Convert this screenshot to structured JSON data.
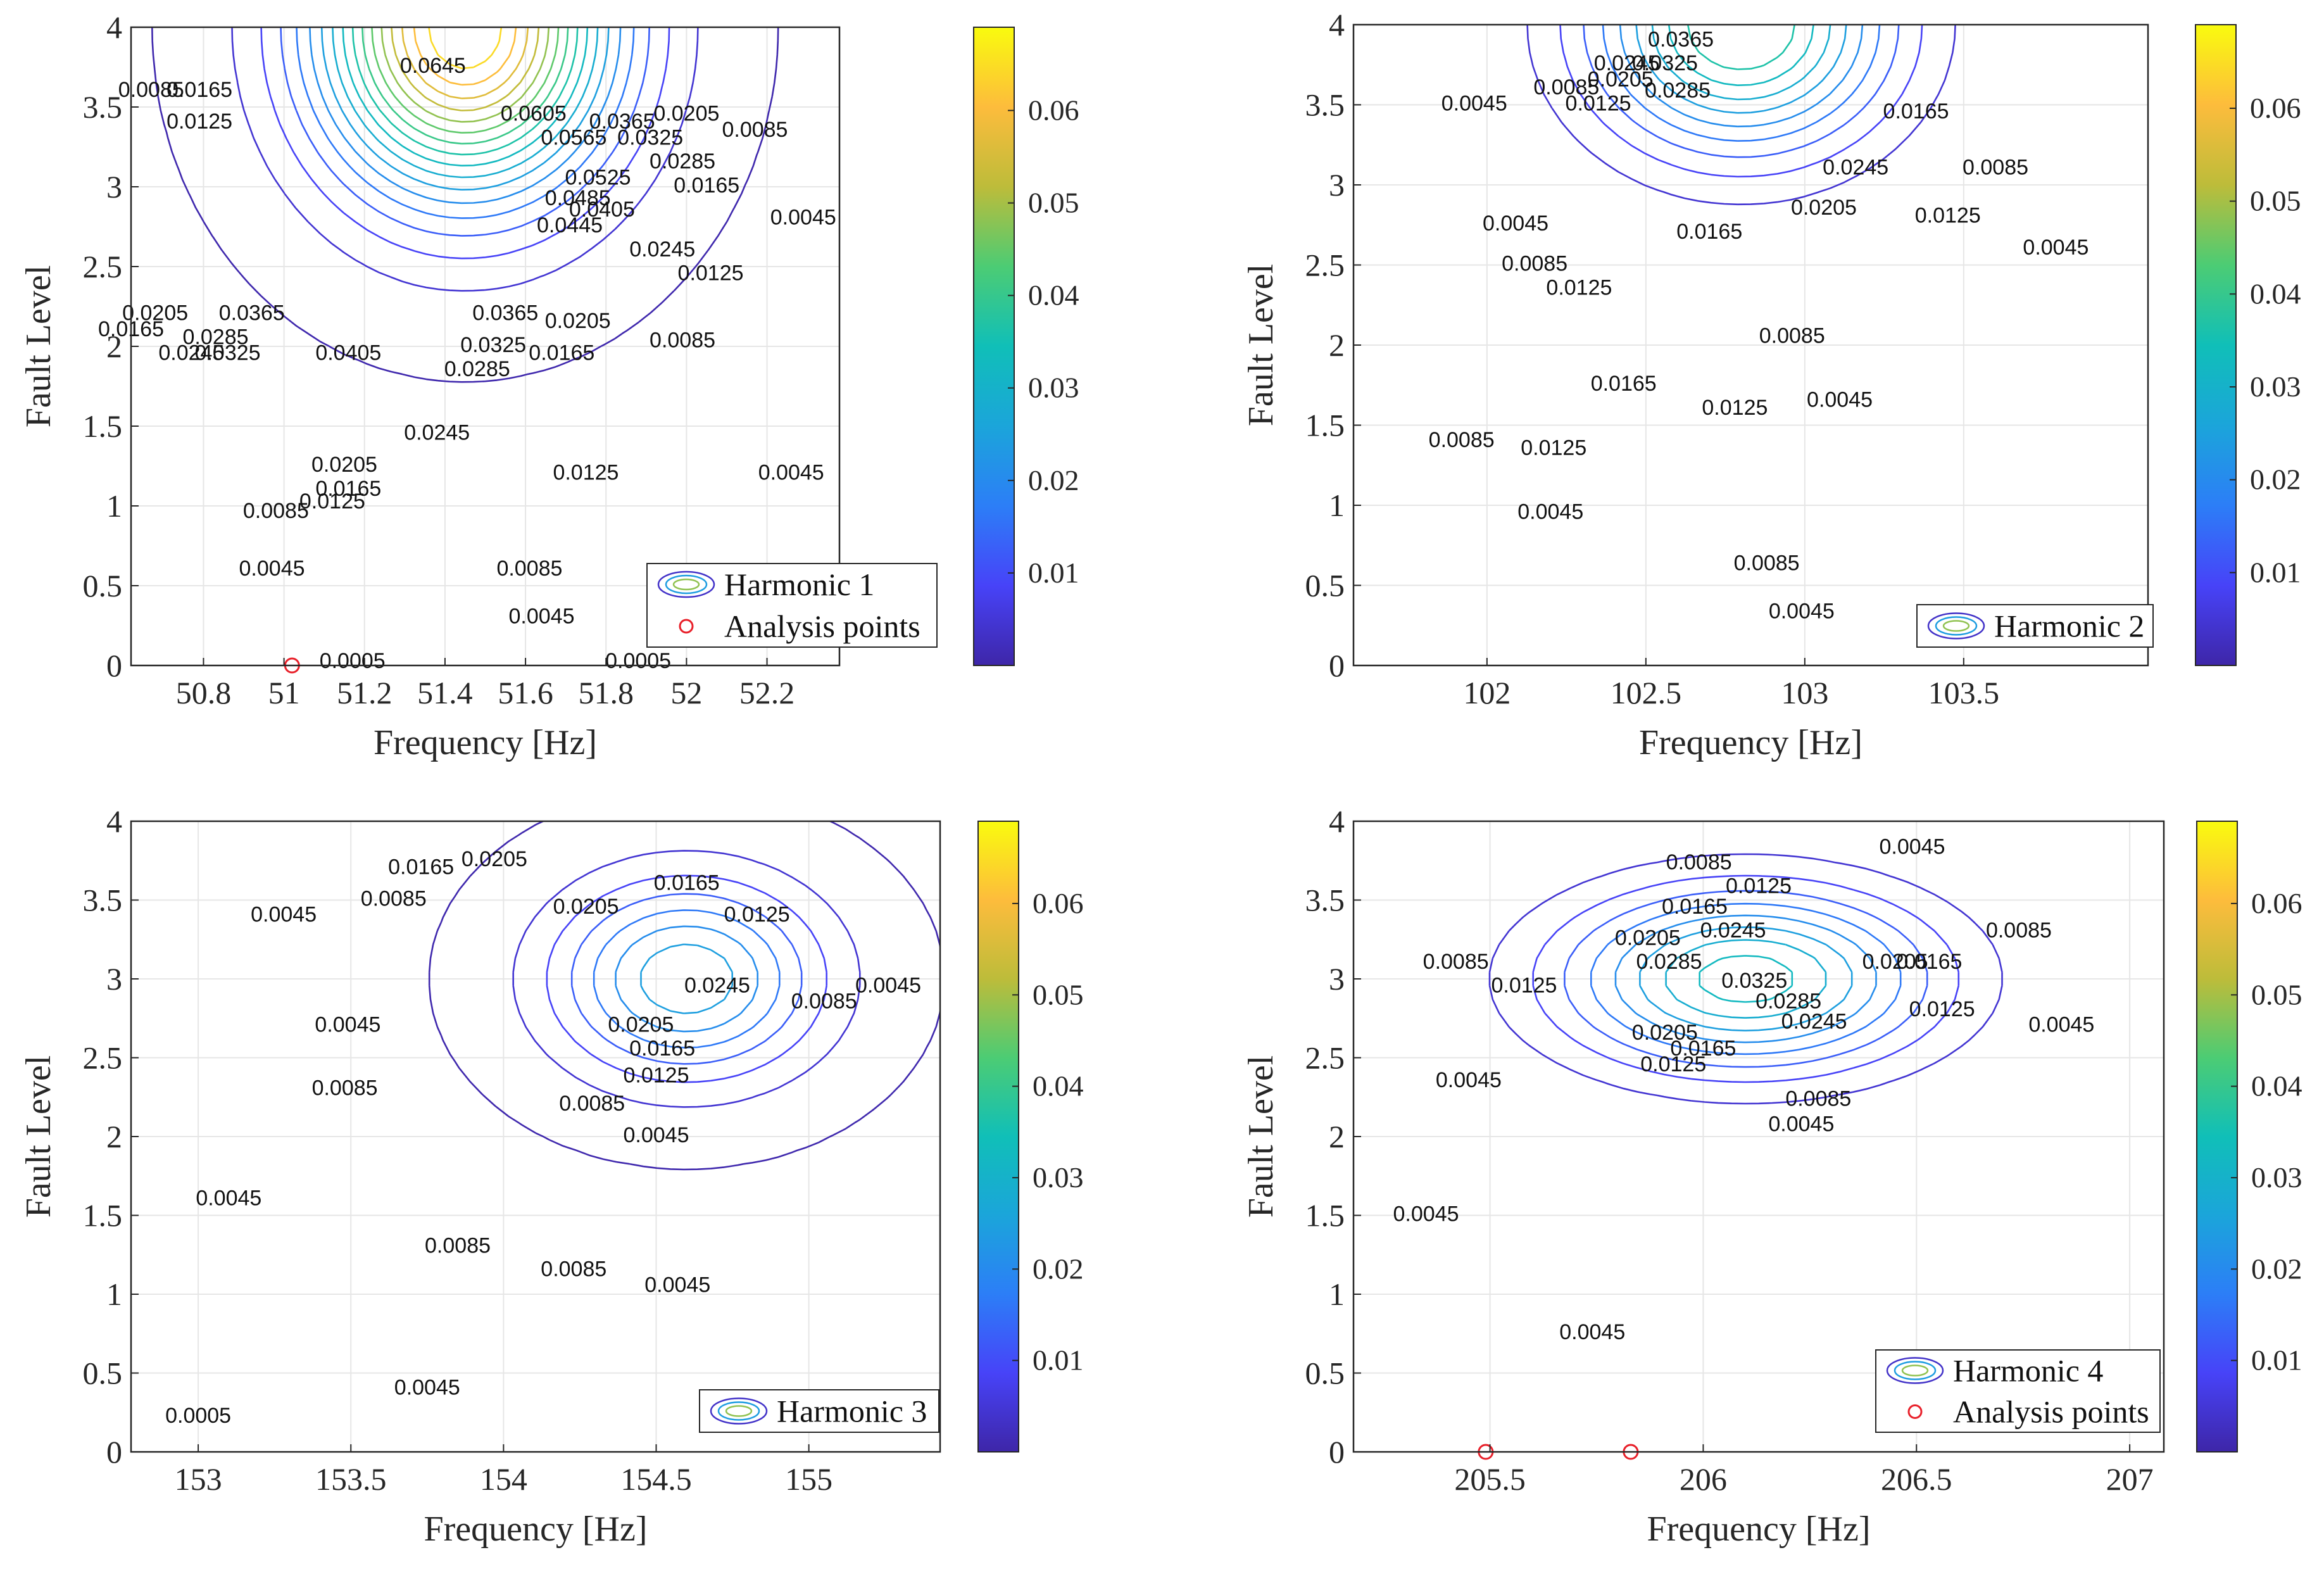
{
  "colormap": [
    "#3e26a8",
    "#4743f8",
    "#2c7ef7",
    "#1ba5da",
    "#10bfb8",
    "#4ccc74",
    "#bdbc3a",
    "#fdbc3c",
    "#f9fb0e"
  ],
  "colorbar": {
    "min": 0,
    "max": 0.069,
    "ticks": [
      "0.01",
      "0.02",
      "0.03",
      "0.04",
      "0.05",
      "0.06"
    ]
  },
  "chart_data": [
    {
      "type": "contour",
      "title": "",
      "xlabel": "Frequency [Hz]",
      "ylabel": "Fault Level",
      "xlim": [
        50.62,
        52.38
      ],
      "ylim": [
        0,
        4
      ],
      "xticks": [
        "50.8",
        "51",
        "51.2",
        "51.4",
        "51.6",
        "51.8",
        "52",
        "52.2"
      ],
      "yticks": [
        "0",
        "0.5",
        "1",
        "1.5",
        "2",
        "2.5",
        "3",
        "3.5",
        "4"
      ],
      "legend": [
        "Harmonic 1",
        "Analysis points"
      ],
      "legend_position": "bottom-right",
      "analysis_points": [
        [
          51.02,
          0
        ]
      ],
      "peak": {
        "x": 51.45,
        "y": 4.0,
        "value": 0.069,
        "sx": 0.35,
        "sy": 1.0
      },
      "contour_levels": [
        0.0005,
        0.0045,
        0.0085,
        0.0125,
        0.0165,
        0.0205,
        0.0245,
        0.0285,
        0.0325,
        0.0365,
        0.0405,
        0.0445,
        0.0485,
        0.0525,
        0.0565,
        0.0605,
        0.0645
      ],
      "contour_labels": [
        {
          "text": "0.0005",
          "x": 51.17,
          "y": 0.02
        },
        {
          "text": "0.0005",
          "x": 51.88,
          "y": 0.02
        },
        {
          "text": "0.0045",
          "x": 50.97,
          "y": 0.6
        },
        {
          "text": "0.0045",
          "x": 51.64,
          "y": 0.3
        },
        {
          "text": "0.0045",
          "x": 52.26,
          "y": 1.2
        },
        {
          "text": "0.0045",
          "x": 52.29,
          "y": 2.8
        },
        {
          "text": "0.0085",
          "x": 50.98,
          "y": 0.96
        },
        {
          "text": "0.0085",
          "x": 51.61,
          "y": 0.6
        },
        {
          "text": "0.0085",
          "x": 51.99,
          "y": 2.03
        },
        {
          "text": "0.0085",
          "x": 52.17,
          "y": 3.35
        },
        {
          "text": "0.0085",
          "x": 50.67,
          "y": 3.6
        },
        {
          "text": "0.0125",
          "x": 51.12,
          "y": 1.02
        },
        {
          "text": "0.0125",
          "x": 51.75,
          "y": 1.2
        },
        {
          "text": "0.0125",
          "x": 52.06,
          "y": 2.45
        },
        {
          "text": "0.0125",
          "x": 50.79,
          "y": 3.4
        },
        {
          "text": "0.0165",
          "x": 51.16,
          "y": 1.1
        },
        {
          "text": "0.0165",
          "x": 51.69,
          "y": 1.95
        },
        {
          "text": "0.0165",
          "x": 52.05,
          "y": 3.0
        },
        {
          "text": "0.0165",
          "x": 50.79,
          "y": 3.6
        },
        {
          "text": "0.0165",
          "x": 50.62,
          "y": 2.1
        },
        {
          "text": "0.0205",
          "x": 51.15,
          "y": 1.25
        },
        {
          "text": "0.0205",
          "x": 51.73,
          "y": 2.15
        },
        {
          "text": "0.0205",
          "x": 52.0,
          "y": 3.45
        },
        {
          "text": "0.0205",
          "x": 50.68,
          "y": 2.2
        },
        {
          "text": "0.0245",
          "x": 51.38,
          "y": 1.45
        },
        {
          "text": "0.0245",
          "x": 51.94,
          "y": 2.6
        },
        {
          "text": "0.0245",
          "x": 50.77,
          "y": 1.95
        },
        {
          "text": "0.0285",
          "x": 51.48,
          "y": 1.85
        },
        {
          "text": "0.0285",
          "x": 51.99,
          "y": 3.15
        },
        {
          "text": "0.0285",
          "x": 50.83,
          "y": 2.05
        },
        {
          "text": "0.0325",
          "x": 51.52,
          "y": 2.0
        },
        {
          "text": "0.0325",
          "x": 51.91,
          "y": 3.3
        },
        {
          "text": "0.0325",
          "x": 50.86,
          "y": 1.95
        },
        {
          "text": "0.0365",
          "x": 51.55,
          "y": 2.2
        },
        {
          "text": "0.0365",
          "x": 51.84,
          "y": 3.4
        },
        {
          "text": "0.0365",
          "x": 50.92,
          "y": 2.2
        },
        {
          "text": "0.0405",
          "x": 51.16,
          "y": 1.95
        },
        {
          "text": "0.0405",
          "x": 51.79,
          "y": 2.85
        },
        {
          "text": "0.0445",
          "x": 51.71,
          "y": 2.75
        },
        {
          "text": "0.0485",
          "x": 51.73,
          "y": 2.92
        },
        {
          "text": "0.0525",
          "x": 51.78,
          "y": 3.05
        },
        {
          "text": "0.0565",
          "x": 51.72,
          "y": 3.3
        },
        {
          "text": "0.0605",
          "x": 51.62,
          "y": 3.45
        },
        {
          "text": "0.0645",
          "x": 51.37,
          "y": 3.75
        }
      ]
    },
    {
      "type": "contour",
      "title": "",
      "xlabel": "Frequency [Hz]",
      "ylabel": "Fault Level",
      "xlim": [
        101.58,
        104.08
      ],
      "ylim": [
        0,
        4
      ],
      "xticks": [
        "102",
        "102.5",
        "103",
        "103.5"
      ],
      "yticks": [
        "0",
        "0.5",
        "1",
        "1.5",
        "2",
        "2.5",
        "3",
        "3.5",
        "4"
      ],
      "legend": [
        "Harmonic 2"
      ],
      "legend_position": "bottom-right",
      "analysis_points": [],
      "peak": {
        "x": 102.8,
        "y": 4.0,
        "value": 0.042,
        "sx": 0.45,
        "sy": 0.75
      },
      "contour_levels": [
        0.0045,
        0.0085,
        0.0125,
        0.0165,
        0.0205,
        0.0245,
        0.0285,
        0.0325,
        0.0365
      ],
      "contour_labels": [
        {
          "text": "0.0045",
          "x": 101.96,
          "y": 3.5
        },
        {
          "text": "0.0045",
          "x": 102.09,
          "y": 2.75
        },
        {
          "text": "0.0045",
          "x": 102.2,
          "y": 0.95
        },
        {
          "text": "0.0045",
          "x": 102.99,
          "y": 0.33
        },
        {
          "text": "0.0045",
          "x": 103.11,
          "y": 1.65
        },
        {
          "text": "0.0045",
          "x": 103.79,
          "y": 2.6
        },
        {
          "text": "0.0085",
          "x": 102.25,
          "y": 3.6
        },
        {
          "text": "0.0085",
          "x": 102.15,
          "y": 2.5
        },
        {
          "text": "0.0085",
          "x": 101.92,
          "y": 1.4
        },
        {
          "text": "0.0085",
          "x": 102.88,
          "y": 0.63
        },
        {
          "text": "0.0085",
          "x": 102.96,
          "y": 2.05
        },
        {
          "text": "0.0085",
          "x": 103.6,
          "y": 3.1
        },
        {
          "text": "0.0125",
          "x": 102.29,
          "y": 2.35
        },
        {
          "text": "0.0125",
          "x": 102.21,
          "y": 1.35
        },
        {
          "text": "0.0125",
          "x": 102.78,
          "y": 1.6
        },
        {
          "text": "0.0125",
          "x": 103.45,
          "y": 2.8
        },
        {
          "text": "0.0125",
          "x": 102.35,
          "y": 3.5
        },
        {
          "text": "0.0165",
          "x": 102.43,
          "y": 1.75
        },
        {
          "text": "0.0165",
          "x": 102.7,
          "y": 2.7
        },
        {
          "text": "0.0165",
          "x": 103.35,
          "y": 3.45
        },
        {
          "text": "0.0205",
          "x": 102.42,
          "y": 3.65
        },
        {
          "text": "0.0205",
          "x": 103.06,
          "y": 2.85
        },
        {
          "text": "0.0245",
          "x": 102.44,
          "y": 3.75
        },
        {
          "text": "0.0245",
          "x": 103.16,
          "y": 3.1
        },
        {
          "text": "0.0285",
          "x": 102.6,
          "y": 3.58
        },
        {
          "text": "0.0325",
          "x": 102.56,
          "y": 3.75
        },
        {
          "text": "0.0365",
          "x": 102.61,
          "y": 3.9
        }
      ]
    },
    {
      "type": "contour",
      "title": "",
      "xlabel": "Frequency [Hz]",
      "ylabel": "Fault Level",
      "xlim": [
        152.78,
        155.43
      ],
      "ylim": [
        0,
        4
      ],
      "xticks": [
        "153",
        "153.5",
        "154",
        "154.5",
        "155"
      ],
      "yticks": [
        "0",
        "0.5",
        "1",
        "1.5",
        "2",
        "2.5",
        "3",
        "3.5",
        "4"
      ],
      "legend": [
        "Harmonic 3"
      ],
      "legend_position": "bottom-right",
      "analysis_points": [],
      "peak": {
        "x": 154.6,
        "y": 3.0,
        "value": 0.028,
        "sx": 0.42,
        "sy": 0.6
      },
      "contour_levels": [
        0.0005,
        0.0045,
        0.0085,
        0.0125,
        0.0165,
        0.0205,
        0.0245
      ],
      "contour_labels": [
        {
          "text": "0.0005",
          "x": 153.0,
          "y": 0.22
        },
        {
          "text": "0.0045",
          "x": 153.28,
          "y": 3.4
        },
        {
          "text": "0.0045",
          "x": 153.49,
          "y": 2.7
        },
        {
          "text": "0.0045",
          "x": 153.1,
          "y": 1.6
        },
        {
          "text": "0.0045",
          "x": 153.75,
          "y": 0.4
        },
        {
          "text": "0.0045",
          "x": 154.5,
          "y": 2.0
        },
        {
          "text": "0.0045",
          "x": 154.57,
          "y": 1.05
        },
        {
          "text": "0.0045",
          "x": 155.26,
          "y": 2.95
        },
        {
          "text": "0.0085",
          "x": 153.64,
          "y": 3.5
        },
        {
          "text": "0.0085",
          "x": 153.48,
          "y": 2.3
        },
        {
          "text": "0.0085",
          "x": 153.85,
          "y": 1.3
        },
        {
          "text": "0.0085",
          "x": 154.23,
          "y": 1.15
        },
        {
          "text": "0.0085",
          "x": 154.29,
          "y": 2.2
        },
        {
          "text": "0.0085",
          "x": 155.05,
          "y": 2.85
        },
        {
          "text": "0.0125",
          "x": 154.5,
          "y": 2.38
        },
        {
          "text": "0.0125",
          "x": 154.83,
          "y": 3.4
        },
        {
          "text": "0.0165",
          "x": 153.73,
          "y": 3.7
        },
        {
          "text": "0.0165",
          "x": 154.52,
          "y": 2.55
        },
        {
          "text": "0.0165",
          "x": 154.6,
          "y": 3.6
        },
        {
          "text": "0.0205",
          "x": 153.97,
          "y": 3.75
        },
        {
          "text": "0.0205",
          "x": 154.27,
          "y": 3.45
        },
        {
          "text": "0.0205",
          "x": 154.45,
          "y": 2.7
        },
        {
          "text": "0.0245",
          "x": 154.7,
          "y": 2.95
        }
      ]
    },
    {
      "type": "contour",
      "title": "",
      "xlabel": "Frequency [Hz]",
      "ylabel": "Fault Level",
      "xlim": [
        205.18,
        207.08
      ],
      "ylim": [
        0,
        4
      ],
      "xticks": [
        "205.5",
        "206",
        "206.5",
        "207"
      ],
      "yticks": [
        "0",
        "0.5",
        "1",
        "1.5",
        "2",
        "2.5",
        "3",
        "3.5",
        "4"
      ],
      "legend": [
        "Harmonic 4",
        "Analysis points"
      ],
      "legend_position": "bottom-right",
      "analysis_points": [
        [
          205.49,
          0
        ],
        [
          205.83,
          0
        ]
      ],
      "peak": {
        "x": 206.1,
        "y": 3.0,
        "value": 0.035,
        "sx": 0.42,
        "sy": 0.55
      },
      "contour_levels": [
        0.0045,
        0.0085,
        0.0125,
        0.0165,
        0.0205,
        0.0245,
        0.0285,
        0.0325
      ],
      "contour_labels": [
        {
          "text": "0.0045",
          "x": 205.35,
          "y": 1.5
        },
        {
          "text": "0.0045",
          "x": 205.74,
          "y": 0.75
        },
        {
          "text": "0.0045",
          "x": 205.45,
          "y": 2.35
        },
        {
          "text": "0.0045",
          "x": 206.23,
          "y": 2.07
        },
        {
          "text": "0.0045",
          "x": 206.84,
          "y": 2.7
        },
        {
          "text": "0.0045",
          "x": 206.49,
          "y": 3.83
        },
        {
          "text": "0.0085",
          "x": 205.42,
          "y": 3.1
        },
        {
          "text": "0.0085",
          "x": 205.99,
          "y": 3.73
        },
        {
          "text": "0.0085",
          "x": 206.27,
          "y": 2.23
        },
        {
          "text": "0.0085",
          "x": 206.74,
          "y": 3.3
        },
        {
          "text": "0.0125",
          "x": 205.58,
          "y": 2.95
        },
        {
          "text": "0.0125",
          "x": 206.13,
          "y": 3.58
        },
        {
          "text": "0.0125",
          "x": 205.93,
          "y": 2.45
        },
        {
          "text": "0.0125",
          "x": 206.56,
          "y": 2.8
        },
        {
          "text": "0.0165",
          "x": 205.98,
          "y": 3.45
        },
        {
          "text": "0.0165",
          "x": 206.0,
          "y": 2.55
        },
        {
          "text": "0.0165",
          "x": 206.53,
          "y": 3.1
        },
        {
          "text": "0.0205",
          "x": 205.87,
          "y": 3.25
        },
        {
          "text": "0.0205",
          "x": 205.91,
          "y": 2.65
        },
        {
          "text": "0.0205",
          "x": 206.45,
          "y": 3.1
        },
        {
          "text": "0.0245",
          "x": 206.07,
          "y": 3.3
        },
        {
          "text": "0.0245",
          "x": 206.26,
          "y": 2.72
        },
        {
          "text": "0.0285",
          "x": 205.92,
          "y": 3.1
        },
        {
          "text": "0.0285",
          "x": 206.2,
          "y": 2.85
        },
        {
          "text": "0.0325",
          "x": 206.12,
          "y": 2.98
        }
      ]
    }
  ]
}
